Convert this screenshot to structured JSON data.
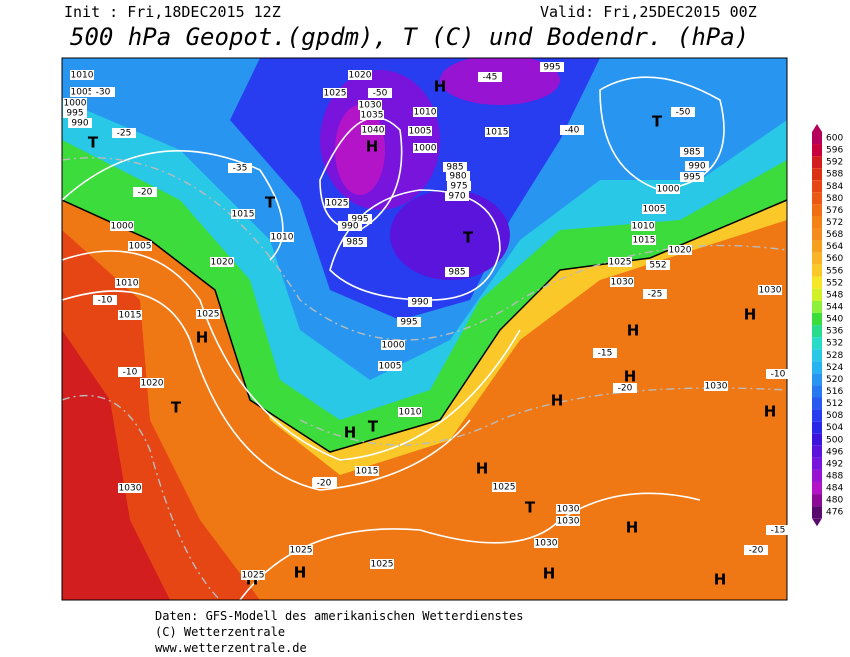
{
  "header": {
    "init": "Init : Fri,18DEC2015 12Z",
    "valid": "Valid: Fri,25DEC2015 00Z",
    "title": "500 hPa Geopot.(gpdm), T (C) und Bodendr. (hPa)"
  },
  "colorbar": {
    "values": [
      600,
      596,
      592,
      588,
      584,
      580,
      576,
      572,
      568,
      564,
      560,
      556,
      552,
      548,
      544,
      540,
      536,
      532,
      528,
      524,
      520,
      516,
      512,
      508,
      504,
      500,
      496,
      492,
      488,
      484,
      480,
      476
    ],
    "colors": [
      "#b4005a",
      "#c8003c",
      "#d21e1e",
      "#dc3214",
      "#e64614",
      "#eb5a14",
      "#f06e14",
      "#f58214",
      "#f58c1e",
      "#f5a01e",
      "#fab428",
      "#fac828",
      "#f5e628",
      "#d2f028",
      "#8cf03c",
      "#3cdc3c",
      "#28dc8c",
      "#28dcc8",
      "#28c8e6",
      "#28b4f0",
      "#2896f0",
      "#2878f0",
      "#285af0",
      "#283cf0",
      "#2828e6",
      "#3c14dc",
      "#5a14dc",
      "#7814dc",
      "#9614d2",
      "#b414c8",
      "#8c0a96",
      "#5a0a6e"
    ]
  },
  "map": {
    "labels": [
      "1010",
      "1005",
      "1000",
      "995",
      "990",
      "T",
      "-30",
      "-25",
      "-20",
      "1000",
      "1005",
      "1010",
      "1015",
      "-10",
      "1020",
      "1025",
      "H",
      "T",
      "-10",
      "1030",
      "1020",
      "1025",
      "H",
      "-35",
      "1015",
      "1010",
      "T",
      "1025",
      "995",
      "990",
      "985",
      "H",
      "1020",
      "1025",
      "1030",
      "1035",
      "1040",
      "-50",
      "1010",
      "1005",
      "1000",
      "H",
      "1015",
      "985",
      "980",
      "975",
      "970",
      "T",
      "985",
      "990",
      "995",
      "1000",
      "1005",
      "1010",
      "T",
      "1015",
      "1020",
      "-20",
      "H",
      "1025",
      "1030",
      "-40",
      "-45",
      "995",
      "T",
      "-50",
      "985",
      "990",
      "995",
      "1000",
      "1005",
      "1010",
      "1015",
      "1020",
      "552",
      "1025",
      "1030",
      "-25",
      "H",
      "H",
      "H",
      "H",
      "1030",
      "-20",
      "H",
      "T",
      "1030",
      "H",
      "H",
      "1030",
      "1030",
      "H",
      "-20",
      "-15",
      "-10",
      "-15",
      "H",
      "1025",
      "H",
      "1025",
      "H"
    ]
  },
  "footer": {
    "line1": "Daten: GFS-Modell des amerikanischen Wetterdienstes",
    "line2": "(C) Wetterzentrale",
    "line3": "www.wetterzentrale.de"
  }
}
